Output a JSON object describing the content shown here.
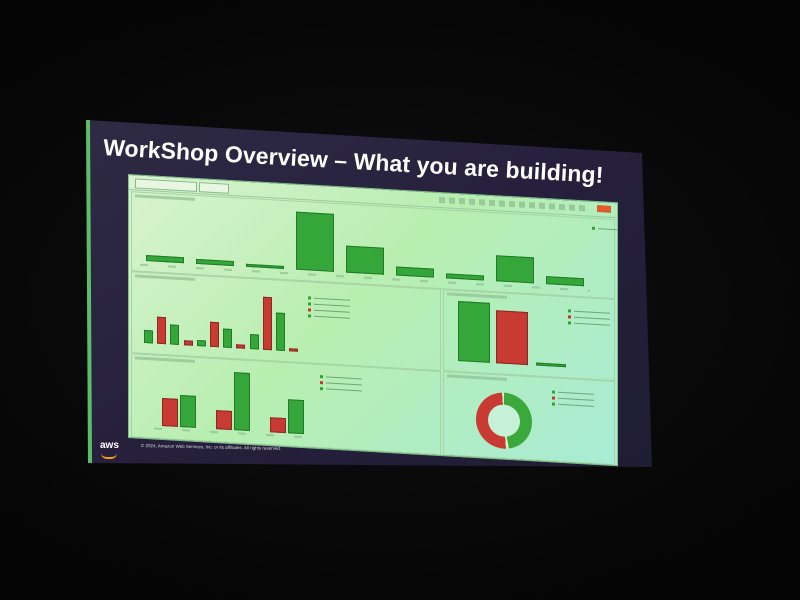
{
  "slide": {
    "title": "WorkShop Overview – What you are building!",
    "copyright": "© 2024, Amazon Web Services, Inc. or its affiliates. All rights reserved.",
    "logo_text": "aws"
  },
  "dashboard": {
    "top_chart": {
      "colors": [
        "green"
      ],
      "values": [
        6,
        5,
        3,
        60,
        28,
        9,
        5,
        27,
        8
      ]
    },
    "left_mid_chart": {
      "groups": [
        [
          10,
          21,
          4
        ],
        [
          16,
          4,
          22
        ],
        [
          20,
          36,
          2
        ],
        [
          6,
          9,
          23
        ]
      ]
    },
    "right_mid_chart": {
      "values_green": [
        58
      ],
      "values_red": [
        51
      ],
      "values_small": [
        3
      ]
    },
    "left_bottom_chart": {
      "pairs": [
        [
          30,
          34
        ],
        [
          20,
          62
        ],
        [
          16,
          36
        ]
      ]
    },
    "donut": {
      "green_fraction": 0.47,
      "red_fraction": 0.5
    },
    "colors": {
      "green": "#35a63a",
      "red": "#c73b32",
      "panel_bg": "#b8eeb0",
      "accent": "#e05a2a"
    }
  }
}
